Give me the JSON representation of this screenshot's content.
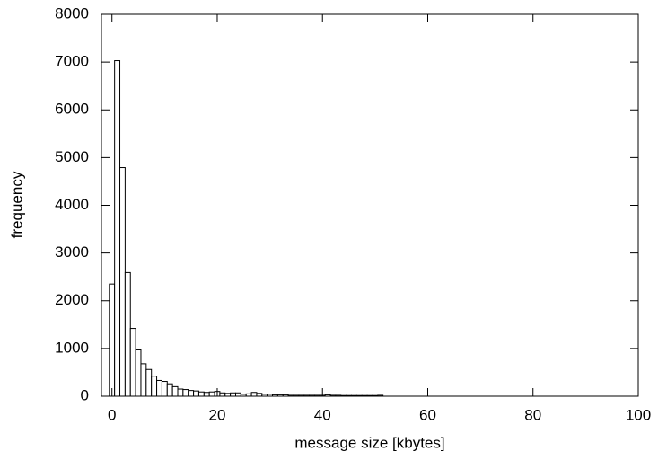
{
  "chart_data": {
    "type": "histogram",
    "xlabel": "message size [kbytes]",
    "ylabel": "frequency",
    "bins": [
      -0.5,
      0.5,
      1.5,
      2.5,
      3.5,
      4.5,
      5.5,
      6.5,
      7.5,
      8.5,
      9.5,
      10.5,
      11.5,
      12.5,
      13.5,
      14.5,
      15.5,
      16.5,
      17.5,
      18.5,
      19.5,
      20.5,
      21.5,
      22.5,
      23.5,
      24.5,
      25.5,
      26.5,
      27.5,
      28.5,
      29.5,
      30.5,
      31.5,
      32.5,
      33.5,
      34.5,
      35.5,
      36.5,
      37.5,
      38.5,
      39.5,
      40.5,
      41.5,
      42.5,
      43.5,
      44.5,
      45.5,
      46.5,
      47.5,
      48.5,
      49.5,
      50.5,
      51.5
    ],
    "counts": [
      2350,
      7030,
      4790,
      2590,
      1420,
      970,
      680,
      560,
      420,
      330,
      310,
      260,
      200,
      150,
      140,
      120,
      110,
      90,
      80,
      90,
      100,
      70,
      60,
      70,
      70,
      40,
      50,
      80,
      60,
      40,
      40,
      30,
      30,
      30,
      20,
      20,
      20,
      20,
      20,
      20,
      20,
      30,
      20,
      20,
      15,
      15,
      15,
      15,
      15,
      15,
      15,
      20
    ],
    "color": "#ffffff",
    "xlim": [
      -2,
      100
    ],
    "xticks": [
      0,
      20,
      40,
      60,
      80,
      100
    ],
    "ylim": [
      0,
      8000
    ],
    "yticks": [
      0,
      1000,
      2000,
      3000,
      4000,
      5000,
      6000,
      7000,
      8000
    ],
    "grid": false
  }
}
